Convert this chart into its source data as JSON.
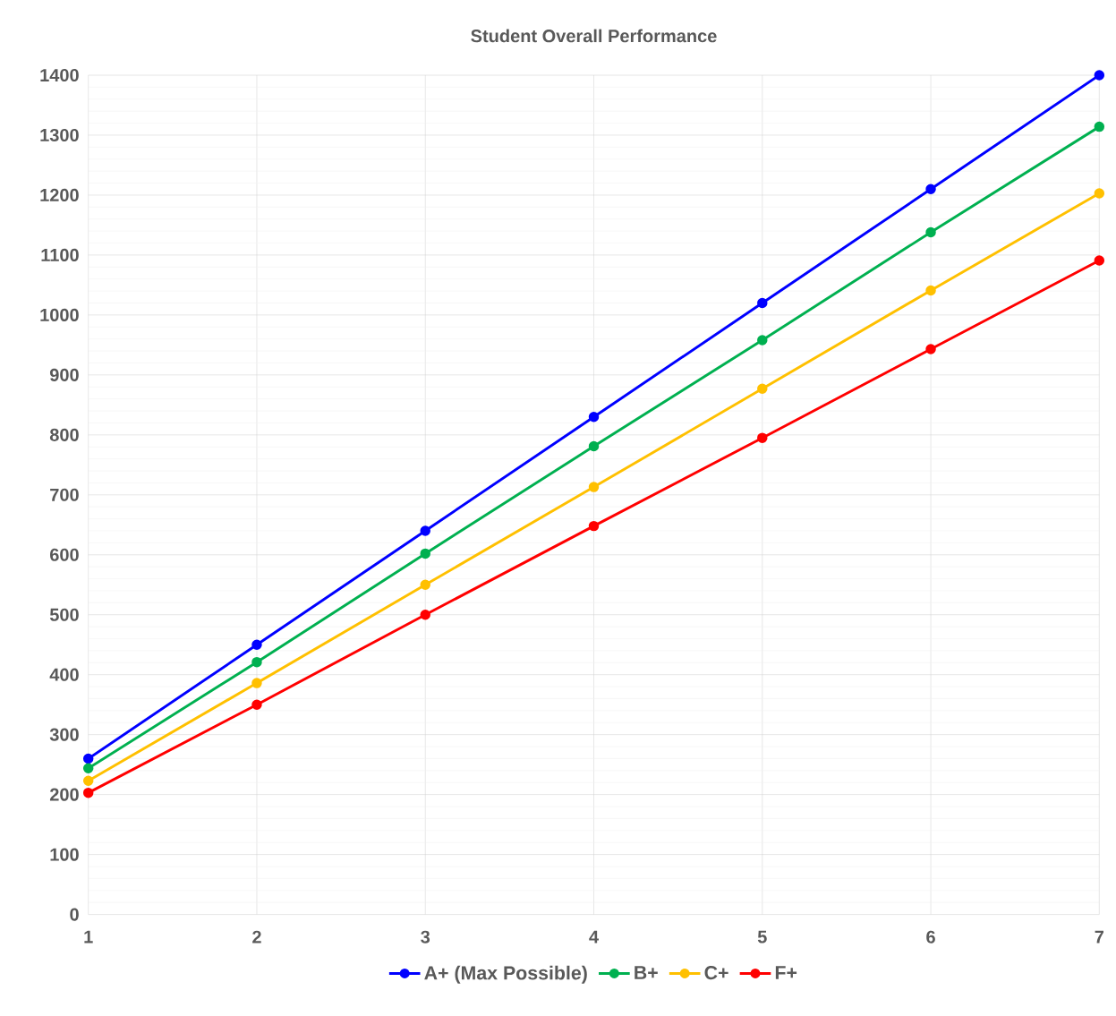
{
  "chart_data": {
    "type": "line",
    "title": "Student Overall Performance",
    "categories": [
      "1",
      "2",
      "3",
      "4",
      "5",
      "6",
      "7"
    ],
    "series": [
      {
        "name": "A+ (Max Possible)",
        "color": "#0000ff",
        "values": [
          260,
          450,
          640,
          830,
          1020,
          1210,
          1400
        ]
      },
      {
        "name": "B+",
        "color": "#00b050",
        "values": [
          244,
          421,
          602,
          781,
          958,
          1138,
          1314
        ]
      },
      {
        "name": "C+",
        "color": "#ffc000",
        "values": [
          223,
          386,
          550,
          713,
          877,
          1041,
          1203
        ]
      },
      {
        "name": "F+",
        "color": "#ff0000",
        "values": [
          203,
          350,
          500,
          648,
          795,
          943,
          1091
        ]
      }
    ],
    "ylim": [
      0,
      1400
    ],
    "yticks": [
      0,
      100,
      200,
      300,
      400,
      500,
      600,
      700,
      800,
      900,
      1000,
      1100,
      1200,
      1300,
      1400
    ],
    "grid": true,
    "legend": "bottom",
    "marker": "circle",
    "line_style": "solid"
  }
}
